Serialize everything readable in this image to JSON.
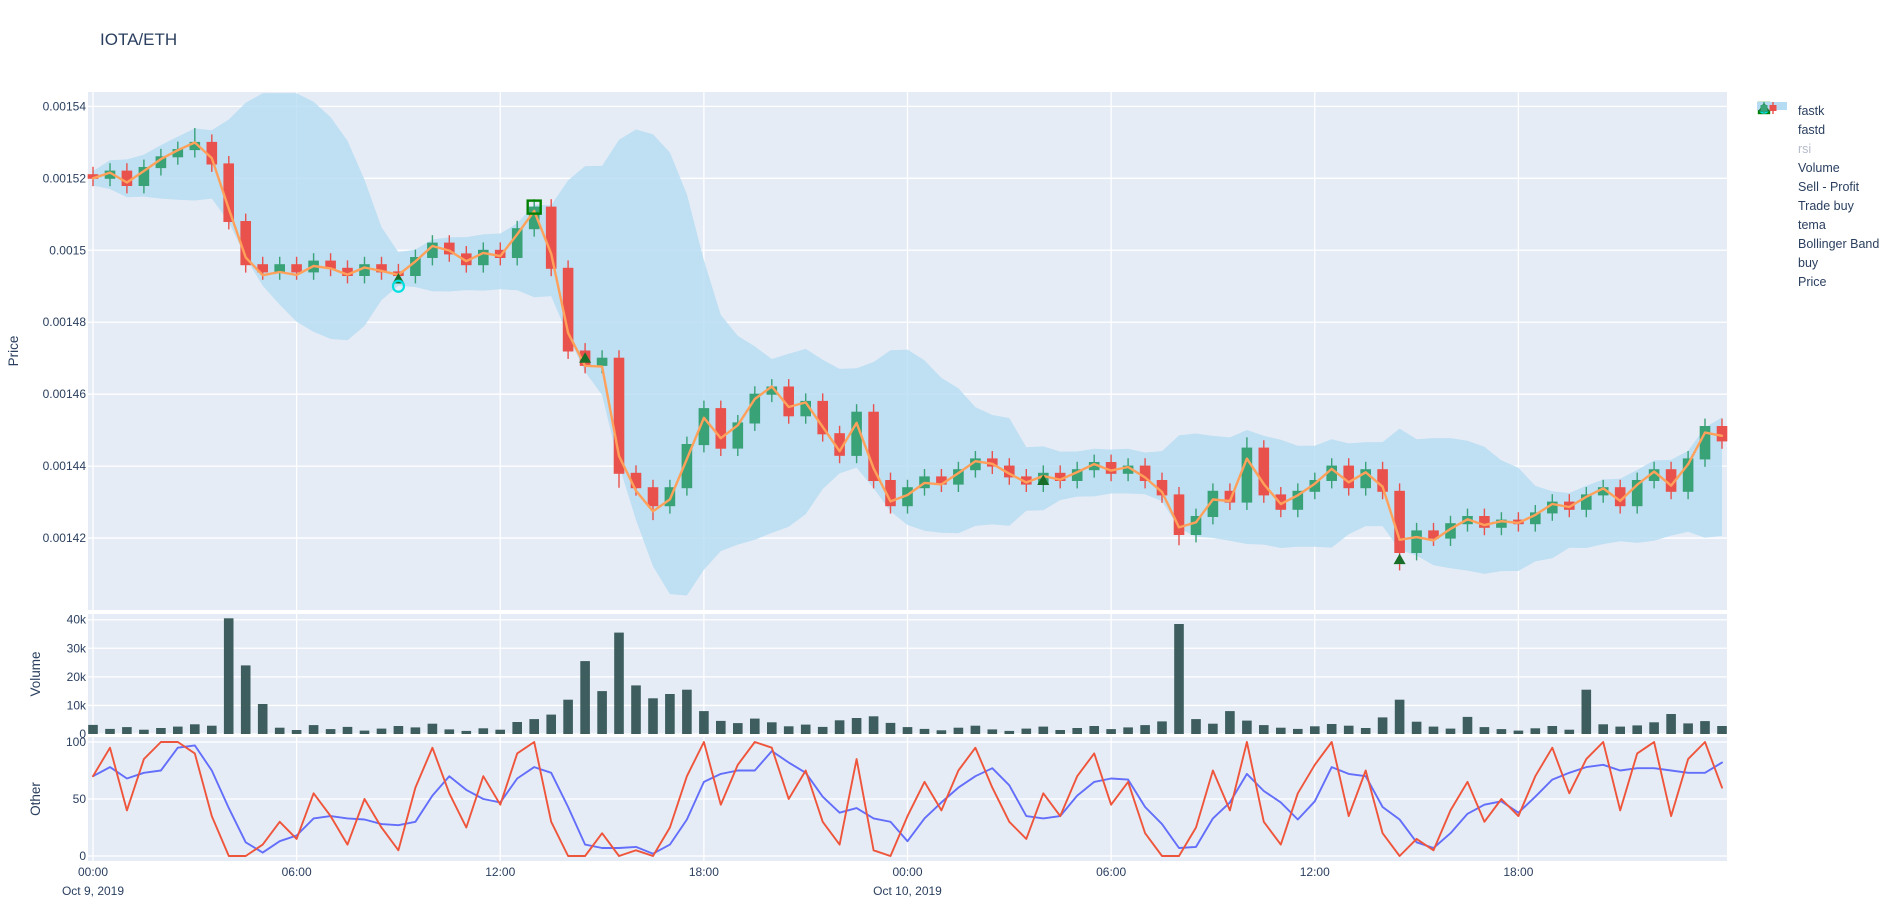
{
  "title": "IOTA/ETH",
  "colors": {
    "plot_bg": "#e5ecf6",
    "grid": "#ffffff",
    "font": "#2a3f5f",
    "candle_up": "#39a277",
    "candle_down": "#e9524c",
    "tema": "#FFA15A",
    "bollinger": "#b5dcf2",
    "fastk": "#EF553B",
    "fastd": "#636EFA",
    "rsi": "#FECB52",
    "volume_bar": "#2f5050",
    "buy_marker": "#186e28",
    "sell_profit": "#008000",
    "trade_buy": "#00e0e0"
  },
  "legend": {
    "items": [
      {
        "label": "fastk",
        "type": "line",
        "color": "#EF553B",
        "muted": false
      },
      {
        "label": "fastd",
        "type": "line",
        "color": "#636EFA",
        "muted": false
      },
      {
        "label": "rsi",
        "type": "line",
        "color": "#FECB52",
        "muted": true
      },
      {
        "label": "Volume",
        "type": "square",
        "color": "#2f5050",
        "muted": false
      },
      {
        "label": "Sell - Profit",
        "type": "osquare",
        "color": "#008000",
        "muted": false
      },
      {
        "label": "Trade buy",
        "type": "ocircle",
        "color": "#00e0e0",
        "muted": false
      },
      {
        "label": "tema",
        "type": "line",
        "color": "#FFA15A",
        "muted": false
      },
      {
        "label": "Bollinger Band",
        "type": "thickline",
        "color": "#b5dcf2",
        "muted": false
      },
      {
        "label": "buy",
        "type": "triangle",
        "color": "#186e28",
        "muted": false
      },
      {
        "label": "Price",
        "type": "candle",
        "color": "#39a277",
        "muted": false
      }
    ]
  },
  "axes": {
    "x": {
      "ticks": [
        {
          "t": 0,
          "label": "00:00"
        },
        {
          "t": 6,
          "label": "06:00"
        },
        {
          "t": 12,
          "label": "12:00"
        },
        {
          "t": 18,
          "label": "18:00"
        },
        {
          "t": 24,
          "label": "00:00"
        },
        {
          "t": 30,
          "label": "06:00"
        },
        {
          "t": 36,
          "label": "12:00"
        },
        {
          "t": 42,
          "label": "18:00"
        }
      ],
      "date_labels": [
        {
          "t": 0,
          "label": "Oct 9, 2019"
        },
        {
          "t": 24,
          "label": "Oct 10, 2019"
        }
      ]
    },
    "price": {
      "label": "Price",
      "ticks": [
        {
          "v": 0.00154,
          "label": "0.00154"
        },
        {
          "v": 0.00152,
          "label": "0.00152"
        },
        {
          "v": 0.0015,
          "label": "0.0015"
        },
        {
          "v": 0.00148,
          "label": "0.00148"
        },
        {
          "v": 0.00146,
          "label": "0.00146"
        },
        {
          "v": 0.00144,
          "label": "0.00144"
        },
        {
          "v": 0.00142,
          "label": "0.00142"
        }
      ],
      "range": [
        0.0014,
        0.001544
      ]
    },
    "volume": {
      "label": "Volume",
      "ticks": [
        {
          "v": 40000,
          "label": "40k"
        },
        {
          "v": 30000,
          "label": "30k"
        },
        {
          "v": 20000,
          "label": "20k"
        },
        {
          "v": 10000,
          "label": "10k"
        },
        {
          "v": 0,
          "label": "0"
        }
      ],
      "range": [
        0,
        42000
      ]
    },
    "other": {
      "label": "Other",
      "ticks": [
        {
          "v": 100,
          "label": "100"
        },
        {
          "v": 50,
          "label": "50"
        },
        {
          "v": 0,
          "label": "0"
        }
      ],
      "range": [
        0,
        100
      ]
    }
  },
  "chart_data": {
    "pair": "IOTA/ETH",
    "x_start": "Oct 9, 2019 00:00",
    "x_end": "Oct 11, 2019 00:00",
    "x_hours_step": 0.5,
    "series": [
      {
        "name": "Price",
        "type": "candlestick",
        "close": [
          0.00152,
          0.001522,
          0.001518,
          0.001523,
          0.001526,
          0.001528,
          0.00153,
          0.001524,
          0.001508,
          0.001496,
          0.001494,
          0.001496,
          0.001494,
          0.001497,
          0.001495,
          0.001493,
          0.001496,
          0.001494,
          0.001493,
          0.001498,
          0.001502,
          0.001499,
          0.001496,
          0.0015,
          0.001498,
          0.001506,
          0.001512,
          0.001495,
          0.001472,
          0.001468,
          0.00147,
          0.001438,
          0.001434,
          0.001429,
          0.001434,
          0.001446,
          0.001456,
          0.001445,
          0.001452,
          0.00146,
          0.001462,
          0.001454,
          0.001458,
          0.001449,
          0.001443,
          0.001455,
          0.001436,
          0.001429,
          0.001434,
          0.001437,
          0.001435,
          0.001439,
          0.001442,
          0.00144,
          0.001437,
          0.001435,
          0.001438,
          0.001436,
          0.001439,
          0.001441,
          0.001438,
          0.00144,
          0.001436,
          0.001432,
          0.001421,
          0.001426,
          0.001433,
          0.00143,
          0.001445,
          0.001432,
          0.001428,
          0.001433,
          0.001436,
          0.00144,
          0.001434,
          0.001439,
          0.001433,
          0.001416,
          0.001422,
          0.00142,
          0.001424,
          0.001426,
          0.001423,
          0.001425,
          0.001424,
          0.001427,
          0.00143,
          0.001428,
          0.001432,
          0.001434,
          0.001429,
          0.001436,
          0.001439,
          0.001433,
          0.001442,
          0.001451,
          0.001447
        ],
        "wick_high_overrides": {
          "6": 0.001534,
          "68": 0.001448
        },
        "wick_low_overrides": {
          "31": 0.001434,
          "33": 0.001425,
          "64": 0.001418,
          "77": 0.001411
        }
      },
      {
        "name": "Bollinger Band",
        "type": "area-band",
        "derived": "rolling mean +/- 2 std (window 10) of close"
      },
      {
        "name": "tema",
        "type": "line",
        "derived": "double EMA (alpha 0.55) of close"
      },
      {
        "name": "Volume",
        "type": "bar",
        "values": [
          3200,
          1800,
          2400,
          1500,
          2100,
          2600,
          3400,
          2900,
          40500,
          24000,
          10500,
          2200,
          1400,
          3100,
          1700,
          2500,
          1200,
          1900,
          2800,
          2300,
          3600,
          1600,
          1100,
          2000,
          1500,
          4200,
          5200,
          6800,
          12000,
          25500,
          15000,
          35500,
          17000,
          12500,
          14000,
          15500,
          8000,
          4600,
          3800,
          5400,
          4100,
          2700,
          3300,
          2500,
          4800,
          5600,
          6200,
          3900,
          2400,
          1800,
          1300,
          2200,
          2900,
          1600,
          1100,
          1900,
          2600,
          1400,
          2100,
          2800,
          1700,
          2300,
          3100,
          4400,
          38500,
          5200,
          3600,
          8000,
          4700,
          3100,
          2200,
          1800,
          2700,
          3500,
          2900,
          2100,
          5800,
          12000,
          4300,
          2600,
          1900,
          6000,
          2400,
          1700,
          1200,
          2000,
          2800,
          1500,
          15500,
          3400,
          2600,
          3000,
          4100,
          7000,
          3700,
          4500,
          2800
        ]
      },
      {
        "name": "fastk",
        "type": "line",
        "pane": "other",
        "values": [
          70,
          95,
          40,
          85,
          100,
          100,
          90,
          35,
          0,
          0,
          10,
          30,
          15,
          55,
          35,
          10,
          50,
          25,
          5,
          60,
          95,
          55,
          25,
          70,
          45,
          90,
          100,
          30,
          0,
          0,
          20,
          0,
          5,
          0,
          25,
          70,
          100,
          45,
          80,
          100,
          95,
          50,
          75,
          30,
          10,
          85,
          5,
          0,
          35,
          65,
          40,
          75,
          95,
          60,
          30,
          15,
          55,
          35,
          70,
          90,
          45,
          65,
          20,
          0,
          0,
          25,
          75,
          40,
          100,
          30,
          10,
          55,
          80,
          100,
          35,
          75,
          20,
          0,
          15,
          5,
          40,
          65,
          30,
          50,
          35,
          70,
          95,
          55,
          85,
          100,
          40,
          90,
          100,
          35,
          85,
          100,
          60
        ]
      },
      {
        "name": "fastd",
        "type": "line",
        "pane": "other",
        "derived": "SMA3 of fastk"
      },
      {
        "name": "rsi",
        "type": "line",
        "pane": "other",
        "visible": false
      },
      {
        "name": "buy",
        "type": "scatter",
        "points": [
          {
            "t": 9,
            "price": 0.001492
          },
          {
            "t": 14.5,
            "price": 0.00147
          },
          {
            "t": 28,
            "price": 0.001436
          },
          {
            "t": 38.5,
            "price": 0.001414
          }
        ]
      },
      {
        "name": "Sell - Profit",
        "type": "scatter",
        "points": [
          {
            "t": 13,
            "price": 0.001512
          }
        ]
      },
      {
        "name": "Trade buy",
        "type": "scatter",
        "points": [
          {
            "t": 9,
            "price": 0.00149
          }
        ]
      }
    ]
  }
}
